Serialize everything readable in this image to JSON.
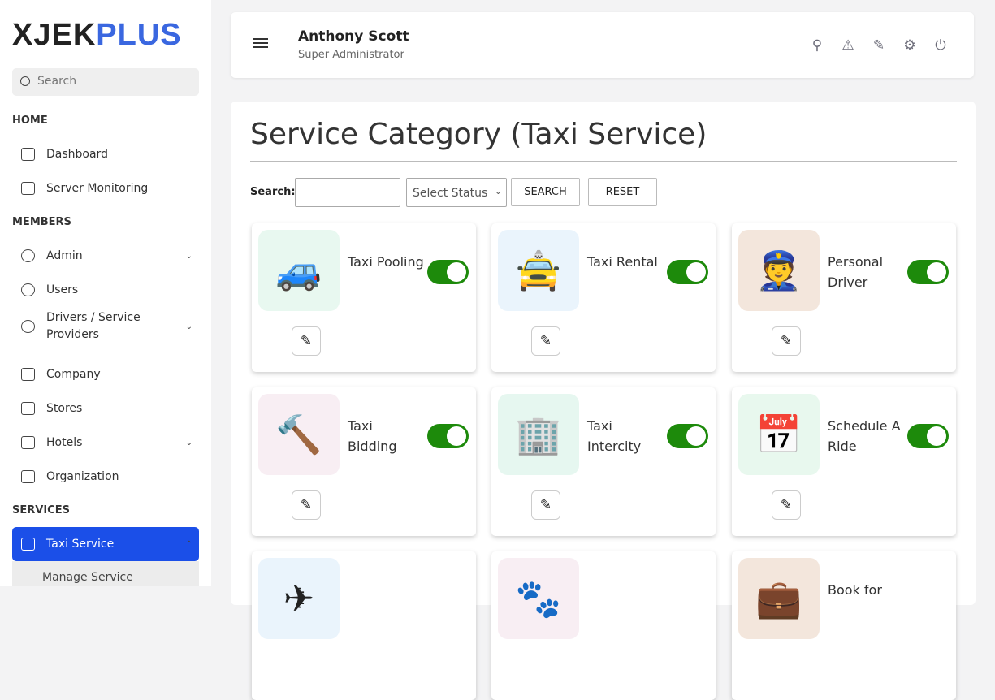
{
  "brand": {
    "part1": "XJEK",
    "part2": "PLUS",
    "accent": "#3a67e0"
  },
  "sidebar": {
    "search_placeholder": "Search",
    "sections": [
      "HOME",
      "MEMBERS",
      "SERVICES"
    ],
    "items": [
      {
        "label": "Dashboard"
      },
      {
        "label": "Server Monitoring"
      },
      {
        "label": "Admin"
      },
      {
        "label": "Users"
      },
      {
        "label": "Drivers / Service Providers"
      },
      {
        "label": "Company"
      },
      {
        "label": "Stores"
      },
      {
        "label": "Hotels"
      },
      {
        "label": "Organization"
      },
      {
        "label": "Taxi Service"
      }
    ],
    "subitem": "Manage Service"
  },
  "header": {
    "name": "Anthony Scott",
    "role": "Super Administrator",
    "icons": [
      "user-icon",
      "alert-icon",
      "edit-note-icon",
      "gear-icon",
      "power-icon"
    ]
  },
  "main": {
    "title": "Service Category (Taxi Service)",
    "search_label": "Search:",
    "search_value": "",
    "status_select": "Select Status",
    "search_btn": "SEARCH",
    "reset_btn": "RESET",
    "cards": [
      {
        "name": "Taxi Pooling",
        "icon": "🚙",
        "bg": "#e8f8f0",
        "enabled": true
      },
      {
        "name": "Taxi Rental",
        "icon": "🚖",
        "bg": "#eaf4fc",
        "enabled": true
      },
      {
        "name": "Personal Driver",
        "icon": "👮",
        "bg": "#f3e6dc",
        "enabled": true
      },
      {
        "name": "Taxi Bidding",
        "icon": "🔨",
        "bg": "#f8eef3",
        "enabled": true
      },
      {
        "name": "Taxi Intercity",
        "icon": "🏢",
        "bg": "#e6f7f0",
        "enabled": true
      },
      {
        "name": "Schedule A Ride",
        "icon": "📅",
        "bg": "#e8f8ee",
        "enabled": true
      },
      {
        "name": "",
        "icon": "✈",
        "bg": "#eaf4fc"
      },
      {
        "name": "",
        "icon": "🐾",
        "bg": "#f8eef3"
      },
      {
        "name": "Book for",
        "icon": "💼",
        "bg": "#f3e6dc"
      }
    ]
  }
}
